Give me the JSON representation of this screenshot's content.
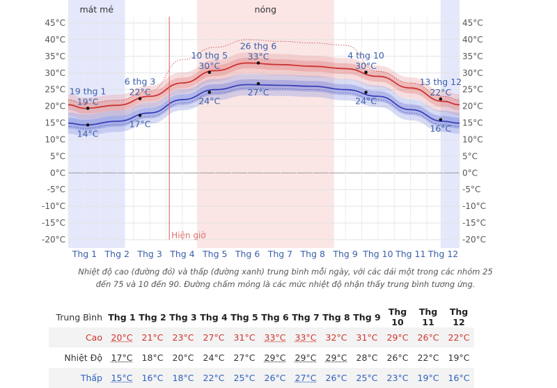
{
  "chart_data": {
    "type": "line",
    "y_ticks": [
      "45°C",
      "40°C",
      "35°C",
      "30°C",
      "25°C",
      "20°C",
      "15°C",
      "10°C",
      "5°C",
      "0°C",
      "-5°C",
      "-10°C",
      "-15°C",
      "-20°C"
    ],
    "ylim": [
      -22,
      47
    ],
    "categories": [
      "Thg 1",
      "Thg 2",
      "Thg 3",
      "Thg 4",
      "Thg 5",
      "Thg 6",
      "Thg 7",
      "Thg 8",
      "Thg 9",
      "Thg 10",
      "Thg 11",
      "Thg 12"
    ],
    "high_series": [
      19.4,
      20.3,
      23.0,
      27.0,
      30.7,
      33.0,
      32.5,
      32.0,
      31.3,
      29.0,
      25.5,
      21.5
    ],
    "low_series": [
      14.4,
      15.5,
      18.0,
      22.0,
      25.0,
      26.5,
      26.3,
      26.0,
      25.0,
      23.0,
      19.0,
      15.5
    ],
    "seasons": [
      {
        "label": "mát mẻ",
        "start_month": 1.0,
        "end_month": 2.74,
        "color": "#e5e8fb"
      },
      {
        "label": "nóng",
        "start_month": 4.95,
        "end_month": 9.15,
        "color": "#fbe5e5"
      },
      {
        "label": "",
        "start_month": 12.42,
        "end_month": 13.0,
        "color": "#e5e8fb"
      }
    ],
    "now_month": 4.1,
    "now_label": "Hiện giờ",
    "annotations": [
      {
        "month": 1.6,
        "date": "19 thg 1",
        "high": "19°C",
        "low": "14°C",
        "high_value": 19.4,
        "low_value": 14.4
      },
      {
        "month": 3.2,
        "date": "6 thg 3",
        "high": "22°C",
        "low": "17°C",
        "high_value": 22.3,
        "low_value": 17.3
      },
      {
        "month": 5.33,
        "date": "10 thg 5",
        "high": "30°C",
        "low": "24°C",
        "high_value": 30.2,
        "low_value": 24.2
      },
      {
        "month": 6.83,
        "date": "26 thg 6",
        "high": "33°C",
        "low": "27°C",
        "high_value": 33.0,
        "low_value": 26.8
      },
      {
        "month": 10.13,
        "date": "4 thg 10",
        "high": "30°C",
        "low": "24°C",
        "high_value": 30.2,
        "low_value": 24.2
      },
      {
        "month": 12.42,
        "date": "13 thg 12",
        "high": "22°C",
        "low": "16°C",
        "high_value": 22.2,
        "low_value": 16.0
      }
    ]
  },
  "caption": {
    "line1": "Nhiệt độ cao (đường đỏ) và thấp (đường xanh) trung bình mỗi ngày, với các dải một trong các nhóm 25",
    "line2": "đến 75 và 10 đến 90. Đường chấm mỏng là các mức nhiệt độ nhận thấy trung bình tương ứng."
  },
  "table": {
    "header_label": "Trung Bình",
    "months": [
      "Thg 1",
      "Thg 2",
      "Thg 3",
      "Thg 4",
      "Thg 5",
      "Thg 6",
      "Thg 7",
      "Thg 8",
      "Thg 9",
      "Thg 10",
      "Thg 11",
      "Thg 12"
    ],
    "rows": [
      {
        "label": "Cao",
        "values": [
          "20°C",
          "21°C",
          "23°C",
          "27°C",
          "31°C",
          "33°C",
          "33°C",
          "32°C",
          "31°C",
          "29°C",
          "26°C",
          "22°C"
        ]
      },
      {
        "label": "Nhiệt Độ",
        "values": [
          "17°C",
          "18°C",
          "20°C",
          "24°C",
          "27°C",
          "29°C",
          "29°C",
          "29°C",
          "28°C",
          "26°C",
          "22°C",
          "19°C"
        ]
      },
      {
        "label": "Thấp",
        "values": [
          "15°C",
          "16°C",
          "18°C",
          "22°C",
          "25°C",
          "26°C",
          "27°C",
          "26°C",
          "25°C",
          "23°C",
          "19°C",
          "16°C"
        ]
      }
    ]
  }
}
